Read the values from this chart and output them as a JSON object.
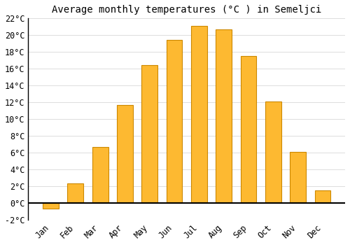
{
  "title": "Average monthly temperatures (°C ) in Semeljci",
  "months": [
    "Jan",
    "Feb",
    "Mar",
    "Apr",
    "May",
    "Jun",
    "Jul",
    "Aug",
    "Sep",
    "Oct",
    "Nov",
    "Dec"
  ],
  "values": [
    -0.7,
    2.3,
    6.7,
    11.7,
    16.4,
    19.4,
    21.1,
    20.7,
    17.5,
    12.1,
    6.1,
    1.5
  ],
  "bar_color": "#FDB931",
  "bar_edge_color": "#CC8800",
  "background_color": "#FFFFFF",
  "grid_color": "#DDDDDD",
  "ylim": [
    -2,
    22
  ],
  "yticks": [
    -2,
    0,
    2,
    4,
    6,
    8,
    10,
    12,
    14,
    16,
    18,
    20,
    22
  ],
  "title_fontsize": 10,
  "tick_fontsize": 8.5
}
